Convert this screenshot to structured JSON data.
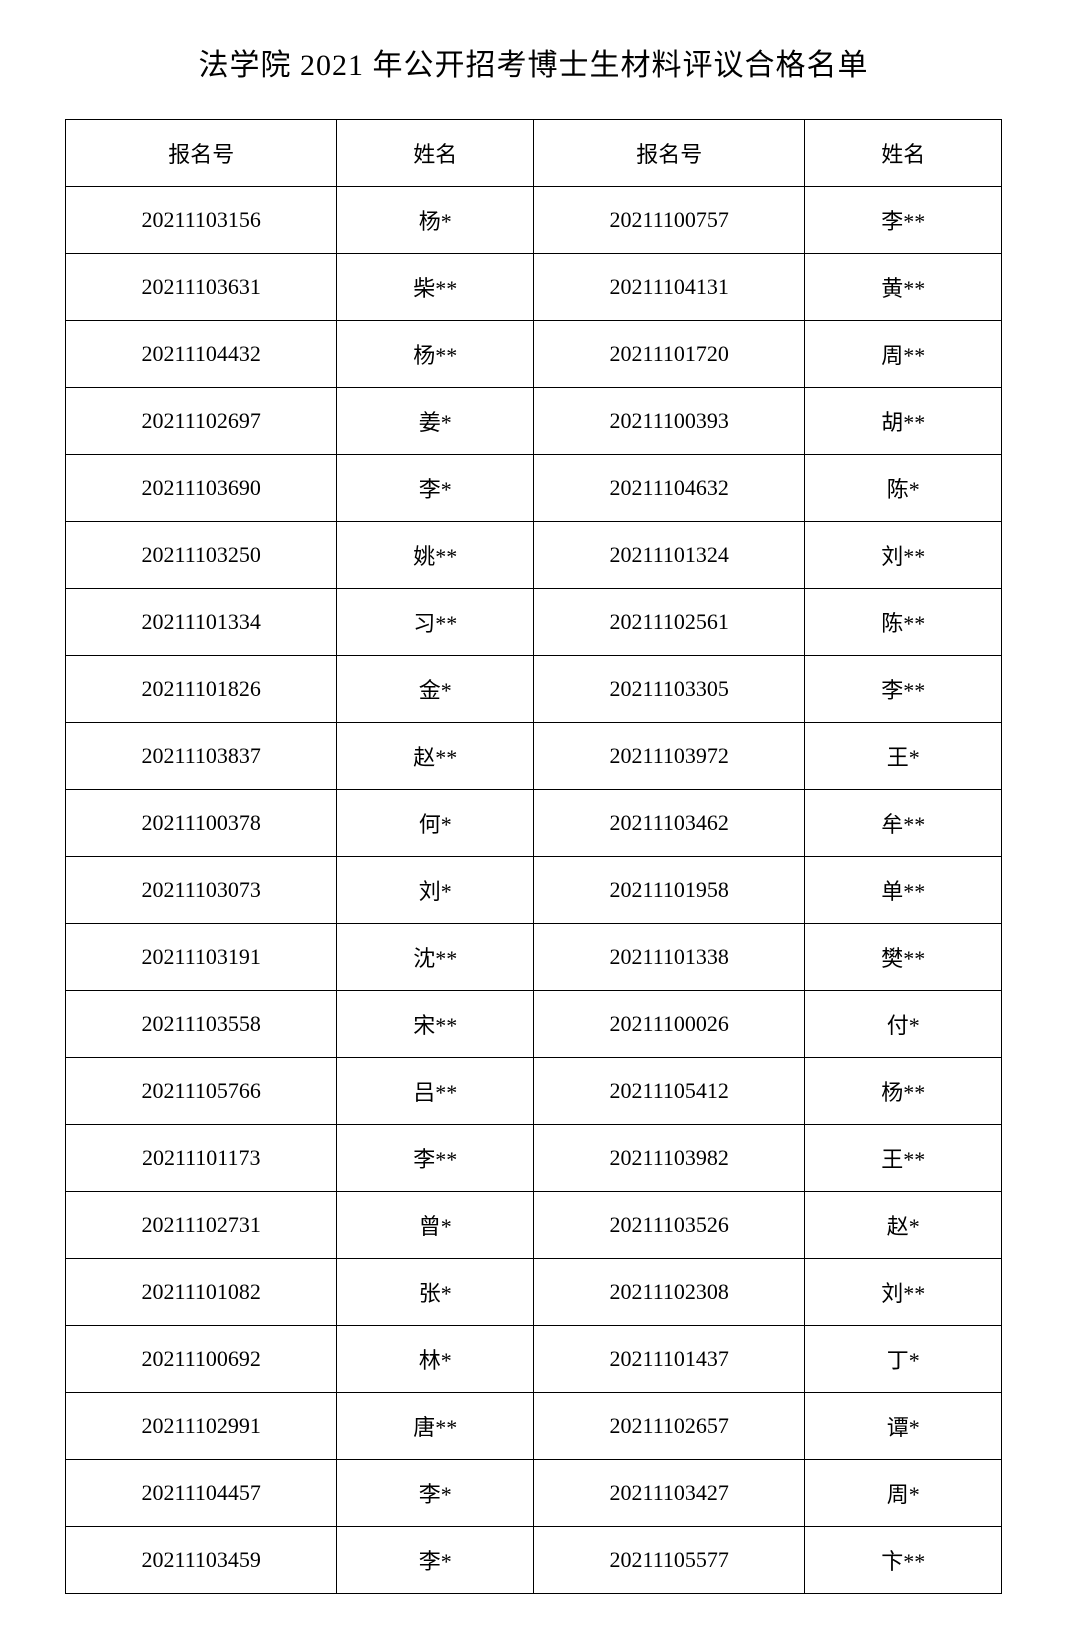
{
  "title": "法学院 2021 年公开招考博士生材料评议合格名单",
  "table": {
    "headers": {
      "id1": "报名号",
      "name1": "姓名",
      "id2": "报名号",
      "name2": "姓名"
    },
    "rows": [
      {
        "id1": "20211103156",
        "name1": "杨*",
        "id2": "20211100757",
        "name2": "李**"
      },
      {
        "id1": "20211103631",
        "name1": "柴**",
        "id2": "20211104131",
        "name2": "黄**"
      },
      {
        "id1": "20211104432",
        "name1": "杨**",
        "id2": "20211101720",
        "name2": "周**"
      },
      {
        "id1": "20211102697",
        "name1": "姜*",
        "id2": "20211100393",
        "name2": "胡**"
      },
      {
        "id1": "20211103690",
        "name1": "李*",
        "id2": "20211104632",
        "name2": "陈*"
      },
      {
        "id1": "20211103250",
        "name1": "姚**",
        "id2": "20211101324",
        "name2": "刘**"
      },
      {
        "id1": "20211101334",
        "name1": "习**",
        "id2": "20211102561",
        "name2": "陈**"
      },
      {
        "id1": "20211101826",
        "name1": "金*",
        "id2": "20211103305",
        "name2": "李**"
      },
      {
        "id1": "20211103837",
        "name1": "赵**",
        "id2": "20211103972",
        "name2": "王*"
      },
      {
        "id1": "20211100378",
        "name1": "何*",
        "id2": "20211103462",
        "name2": "牟**"
      },
      {
        "id1": "20211103073",
        "name1": "刘*",
        "id2": "20211101958",
        "name2": "单**"
      },
      {
        "id1": "20211103191",
        "name1": "沈**",
        "id2": "20211101338",
        "name2": "樊**"
      },
      {
        "id1": "20211103558",
        "name1": "宋**",
        "id2": "20211100026",
        "name2": "付*"
      },
      {
        "id1": "20211105766",
        "name1": "吕**",
        "id2": "20211105412",
        "name2": "杨**"
      },
      {
        "id1": "20211101173",
        "name1": "李**",
        "id2": "20211103982",
        "name2": "王**"
      },
      {
        "id1": "20211102731",
        "name1": "曾*",
        "id2": "20211103526",
        "name2": "赵*"
      },
      {
        "id1": "20211101082",
        "name1": "张*",
        "id2": "20211102308",
        "name2": "刘**"
      },
      {
        "id1": "20211100692",
        "name1": "林*",
        "id2": "20211101437",
        "name2": "丁*"
      },
      {
        "id1": "20211102991",
        "name1": "唐**",
        "id2": "20211102657",
        "name2": "谭*"
      },
      {
        "id1": "20211104457",
        "name1": "李*",
        "id2": "20211103427",
        "name2": "周*"
      },
      {
        "id1": "20211103459",
        "name1": "李*",
        "id2": "20211105577",
        "name2": "卞**"
      }
    ],
    "colors": {
      "border": "#000000",
      "background": "#ffffff",
      "text": "#000000"
    },
    "font_size_title": 30,
    "font_size_cell": 22
  }
}
